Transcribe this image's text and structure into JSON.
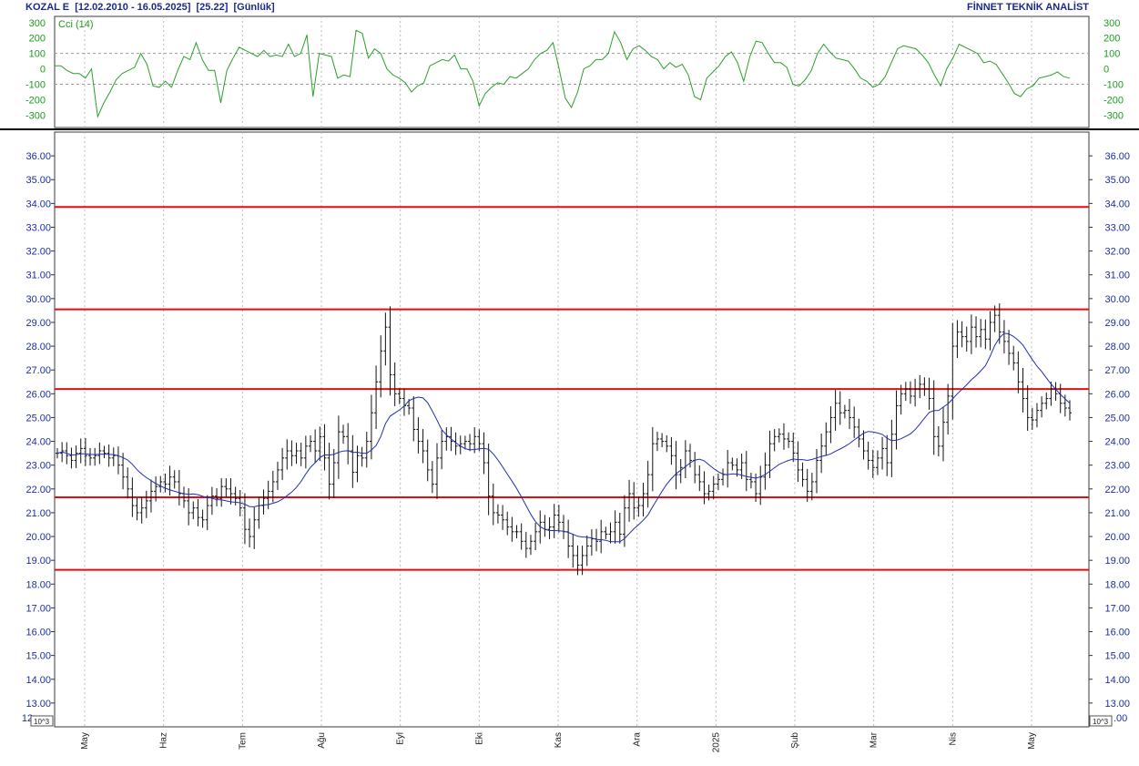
{
  "header": {
    "left": "KOZAL E  [12.02.2010 - 16.05.2025]  [25.22]  [Günlük]",
    "right": "FİNNET TEKNİK ANALİST"
  },
  "colors": {
    "bars": "#111111",
    "moving_average": "#1f2fb0",
    "levels": "#dd1111",
    "cci": "#2aa02a",
    "axis_labels": "#1c2f9b",
    "grid": "#b8b8b8"
  },
  "scale_unit_label": "10^3",
  "chart_data": [
    {
      "type": "line",
      "title": "Cci (14)",
      "yticks": [
        300,
        200,
        100,
        0,
        -100,
        -200,
        -300
      ],
      "ylim": [
        -380,
        340
      ],
      "reference_lines": [
        100,
        -100
      ],
      "grid": "vertical dotted",
      "values": [
        20,
        20,
        -10,
        -30,
        -30,
        -60,
        0,
        -310,
        -220,
        -150,
        -70,
        -30,
        -10,
        10,
        100,
        30,
        -110,
        -120,
        -80,
        -120,
        -10,
        80,
        60,
        170,
        60,
        -10,
        -10,
        -220,
        -10,
        70,
        140,
        120,
        100,
        80,
        120,
        80,
        90,
        80,
        160,
        80,
        100,
        220,
        -180,
        100,
        90,
        80,
        -60,
        -40,
        -50,
        250,
        230,
        70,
        130,
        100,
        0,
        -40,
        -60,
        -90,
        -150,
        -110,
        -90,
        20,
        40,
        60,
        50,
        90,
        0,
        0,
        -80,
        -240,
        -160,
        -120,
        -90,
        -100,
        -50,
        -60,
        -30,
        0,
        60,
        100,
        120,
        170,
        0,
        -190,
        -250,
        -150,
        0,
        20,
        60,
        60,
        100,
        240,
        170,
        60,
        130,
        150,
        120,
        80,
        60,
        0,
        40,
        10,
        30,
        -40,
        -180,
        -200,
        -60,
        -20,
        20,
        80,
        110,
        40,
        -80,
        80,
        180,
        170,
        100,
        40,
        40,
        10,
        -100,
        -110,
        -70,
        -10,
        100,
        160,
        110,
        70,
        60,
        50,
        0,
        -60,
        -80,
        -120,
        -100,
        -50,
        40,
        130,
        150,
        140,
        130,
        90,
        40,
        -40,
        -110,
        0,
        70,
        160,
        140,
        120,
        100,
        40,
        50,
        30,
        -30,
        -90,
        -160,
        -180,
        -130,
        -110,
        -60,
        -50,
        -40,
        -20,
        -50,
        -60
      ]
    },
    {
      "type": "ohlc",
      "title": "",
      "yticks": [
        36,
        35,
        34,
        33,
        32,
        31,
        30,
        29,
        28,
        27,
        26,
        25,
        24,
        23,
        22,
        21,
        20,
        19,
        18,
        17,
        16,
        15,
        14,
        13
      ],
      "ytick_labels": [
        "36.00",
        "35.00",
        "34.00",
        "33.00",
        "32.00",
        "31.00",
        "30.00",
        "29.00",
        "28.00",
        "27.00",
        "26.00",
        "25.00",
        "24.00",
        "23.00",
        "22.00",
        "21.00",
        "20.00",
        "19.00",
        "18.00",
        "17.00",
        "16.00",
        "15.00",
        "14.00",
        "13.00"
      ],
      "ylim": [
        12,
        37
      ],
      "bottom_left_tick": "12",
      "bottom_right_tick": ".00",
      "x_labels": [
        "May",
        "Haz",
        "Tem",
        "Ağu",
        "Eyl",
        "Eki",
        "Kas",
        "Ara",
        "2025",
        "Şub",
        "Mar",
        "Nis",
        "May"
      ],
      "grid": "vertical dotted at month starts",
      "horizontal_levels": [
        33.85,
        29.55,
        26.2,
        21.65,
        18.6
      ],
      "closes": [
        23.5,
        23.6,
        23.4,
        23.2,
        23.5,
        23.7,
        23.4,
        23.3,
        23.4,
        23.6,
        23.5,
        23.3,
        23.4,
        23.0,
        22.5,
        22.0,
        21.3,
        21.0,
        21.2,
        21.5,
        21.9,
        22.1,
        22.3,
        22.2,
        22.5,
        22.3,
        21.8,
        21.5,
        21.0,
        21.2,
        20.8,
        20.7,
        21.3,
        21.7,
        21.6,
        22.1,
        22.0,
        21.8,
        21.6,
        21.2,
        20.3,
        20.0,
        20.7,
        21.3,
        21.6,
        21.9,
        22.3,
        22.8,
        23.3,
        23.6,
        23.4,
        23.6,
        23.3,
        23.8,
        24.0,
        23.6,
        24.2,
        23.3,
        22.2,
        23.1,
        24.4,
        24.2,
        23.6,
        22.7,
        23.4,
        23.3,
        24.0,
        25.2,
        26.5,
        27.8,
        28.8,
        26.8,
        26.0,
        25.8,
        25.5,
        25.4,
        24.5,
        24.0,
        23.6,
        22.8,
        22.2,
        23.3,
        24.0,
        24.2,
        24.0,
        23.8,
        23.9,
        24.0,
        23.9,
        24.2,
        23.9,
        23.1,
        21.7,
        21.0,
        20.9,
        20.7,
        20.4,
        20.2,
        20.2,
        19.8,
        19.5,
        19.8,
        20.2,
        20.6,
        20.3,
        20.4,
        20.9,
        20.6,
        20.2,
        19.6,
        19.2,
        18.8,
        19.2,
        19.6,
        19.9,
        19.8,
        20.2,
        20.1,
        20.2,
        20.6,
        20.1,
        21.2,
        21.8,
        21.2,
        21.3,
        21.8,
        22.6,
        23.9,
        24.1,
        24.0,
        23.8,
        23.4,
        22.6,
        22.9,
        23.6,
        23.2,
        22.6,
        22.3,
        21.8,
        21.9,
        22.2,
        22.4,
        22.6,
        23.1,
        23.0,
        22.8,
        23.1,
        22.4,
        22.3,
        21.8,
        22.5,
        23.0,
        23.9,
        24.2,
        24.3,
        24.1,
        24.0,
        23.5,
        22.8,
        22.4,
        21.9,
        22.3,
        23.2,
        23.8,
        24.4,
        25.0,
        25.6,
        25.2,
        25.3,
        25.0,
        24.6,
        24.1,
        23.6,
        23.2,
        22.9,
        23.3,
        23.7,
        23.1,
        24.3,
        25.5,
        26.0,
        26.2,
        25.9,
        26.2,
        26.4,
        26.2,
        25.8,
        24.2,
        23.8,
        24.8,
        25.9,
        28.0,
        28.6,
        28.4,
        28.2,
        28.8,
        28.4,
        28.7,
        28.3,
        29.0,
        29.3,
        28.6,
        28.2,
        27.7,
        27.3,
        26.5,
        25.8,
        25.0,
        24.9,
        25.3,
        25.6,
        25.8,
        26.2,
        26.0,
        25.6,
        25.4,
        25.2
      ]
    }
  ]
}
